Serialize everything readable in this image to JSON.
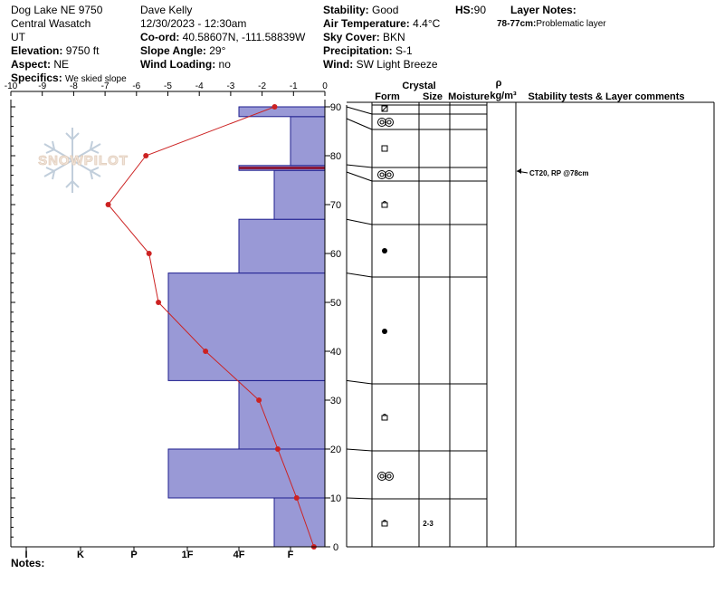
{
  "header": {
    "location": "Dog Lake NE 9750",
    "range": "Central Wasatch",
    "state": "UT",
    "elevation_label": "Elevation:",
    "elevation": "9750 ft",
    "aspect_label": "Aspect:",
    "aspect": "NE",
    "specifics_label": "Specifics:",
    "specifics": "We skied slope",
    "observer": "Dave Kelly",
    "datetime": "12/30/2023 - 12:30am",
    "coord_label": "Co-ord:",
    "coord": "40.58607N, -111.58839W",
    "slope_label": "Slope Angle:",
    "slope": "29°",
    "wind_loading_label": "Wind Loading:",
    "wind_loading": "no",
    "stability_label": "Stability:",
    "stability": "Good",
    "air_temp_label": "Air Temperature:",
    "air_temp": "4.4°C",
    "sky_label": "Sky Cover:",
    "sky": "BKN",
    "precip_label": "Precipitation:",
    "precip": "S-1",
    "wind_label": "Wind:",
    "wind": "SW Light Breeze",
    "hs_label": "HS:",
    "hs": "90",
    "layer_notes_label": "Layer Notes:",
    "layer_note_range": "78-77cm:",
    "layer_note_text": "Problematic layer"
  },
  "logo": {
    "text": "SNOWPILOT"
  },
  "notes_label": "Notes:",
  "columns": {
    "crystal": "Crystal",
    "form": "Form",
    "size": "Size",
    "moisture": "Moisture",
    "rho": "ρ",
    "density_unit": "kg/m³",
    "stability_comments": "Stability tests & Layer comments"
  },
  "stability_test": "CT20, RP @78cm",
  "chart_data": {
    "type": "snow-profile",
    "temp_axis": {
      "range": [
        -10,
        0
      ],
      "ticks": [
        "-10",
        "-9",
        "-8",
        "-7",
        "-6",
        "-5",
        "-4",
        "-3",
        "-2",
        "-1",
        "0"
      ]
    },
    "hardness_axis": {
      "ticks": [
        "I",
        "K",
        "P",
        "1F",
        "4F",
        "F"
      ]
    },
    "depth_axis": {
      "range": [
        0,
        90
      ],
      "ticks": [
        "0",
        "10",
        "20",
        "30",
        "40",
        "50",
        "60",
        "70",
        "80",
        "90"
      ]
    },
    "temperature_profile": [
      {
        "height": 90,
        "temp": -1.6
      },
      {
        "height": 80,
        "temp": -5.7
      },
      {
        "height": 70,
        "temp": -6.9
      },
      {
        "height": 60,
        "temp": -5.6
      },
      {
        "height": 50,
        "temp": -5.3
      },
      {
        "height": 40,
        "temp": -3.8
      },
      {
        "height": 30,
        "temp": -2.1
      },
      {
        "height": 20,
        "temp": -1.5
      },
      {
        "height": 10,
        "temp": -0.9
      },
      {
        "height": 0,
        "temp": -0.35
      }
    ],
    "layers": [
      {
        "bottom": 0,
        "top": 10,
        "hardness": "4F+",
        "form": "facet",
        "size": "2-3"
      },
      {
        "bottom": 10,
        "top": 20,
        "hardness": "1F+",
        "form": "graupel",
        "size": ""
      },
      {
        "bottom": 20,
        "top": 34,
        "hardness": "4F-",
        "form": "facet",
        "size": ""
      },
      {
        "bottom": 34,
        "top": 56,
        "hardness": "1F+",
        "form": "precip",
        "size": ""
      },
      {
        "bottom": 56,
        "top": 67,
        "hardness": "4F-",
        "form": "precip",
        "size": ""
      },
      {
        "bottom": 67,
        "top": 77,
        "hardness": "4F+",
        "form": "facet",
        "size": ""
      },
      {
        "bottom": 77,
        "top": 78,
        "hardness": "4F-",
        "form": "graupel",
        "size": ""
      },
      {
        "bottom": 78,
        "top": 88,
        "hardness": "F+",
        "form": "square",
        "size": ""
      },
      {
        "bottom": 88,
        "top": 90,
        "hardness": "4F-",
        "form": "graupel",
        "size": ""
      }
    ],
    "problematic_layer": {
      "height": 77.5
    },
    "colors": {
      "layer_fill": "#9999d6",
      "layer_stroke": "#1f1f8f",
      "temp_line": "#cc2222",
      "problem_line": "#8b1a3a"
    }
  }
}
